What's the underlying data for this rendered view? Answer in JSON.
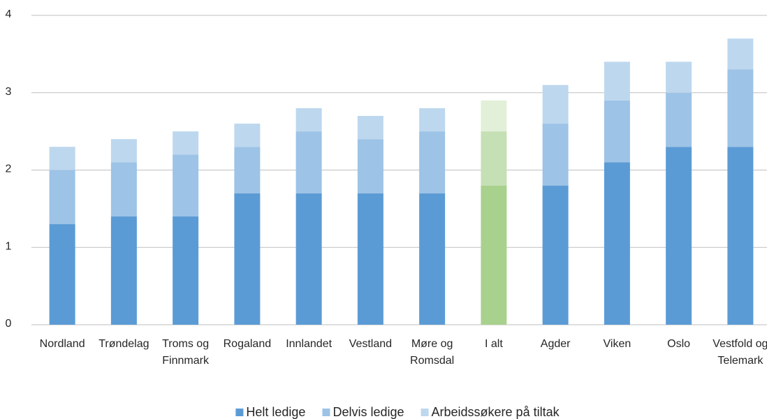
{
  "chart_data": {
    "type": "stacked_bar",
    "categories": [
      "Nordland",
      "Trøndelag",
      "Troms og Finnmark",
      "Rogaland",
      "Innlandet",
      "Vestland",
      "Møre og Romsdal",
      "I alt",
      "Agder",
      "Viken",
      "Oslo",
      "Vestfold og Telemark"
    ],
    "series": [
      {
        "name": "Helt ledige",
        "color": "#5b9bd5",
        "colors": [
          "#5b9bd5",
          "#5b9bd5",
          "#5b9bd5",
          "#5b9bd5",
          "#5b9bd5",
          "#5b9bd5",
          "#5b9bd5",
          "#a9d18e",
          "#5b9bd5",
          "#5b9bd5",
          "#5b9bd5",
          "#5b9bd5"
        ],
        "values": [
          1.3,
          1.4,
          1.4,
          1.7,
          1.7,
          1.7,
          1.7,
          1.8,
          1.8,
          2.1,
          2.3,
          2.3
        ]
      },
      {
        "name": "Delvis ledige",
        "color": "#9dc3e6",
        "colors": [
          "#9dc3e6",
          "#9dc3e6",
          "#9dc3e6",
          "#9dc3e6",
          "#9dc3e6",
          "#9dc3e6",
          "#9dc3e6",
          "#c5e0b4",
          "#9dc3e6",
          "#9dc3e6",
          "#9dc3e6",
          "#9dc3e6"
        ],
        "values": [
          0.7,
          0.7,
          0.8,
          0.6,
          0.8,
          0.7,
          0.8,
          0.7,
          0.8,
          0.8,
          0.7,
          1.0
        ]
      },
      {
        "name": "Arbeidssøkere på tiltak",
        "color": "#bdd7ee",
        "colors": [
          "#bdd7ee",
          "#bdd7ee",
          "#bdd7ee",
          "#bdd7ee",
          "#bdd7ee",
          "#bdd7ee",
          "#bdd7ee",
          "#e2f0d9",
          "#bdd7ee",
          "#bdd7ee",
          "#bdd7ee",
          "#bdd7ee"
        ],
        "values": [
          0.3,
          0.3,
          0.3,
          0.3,
          0.3,
          0.3,
          0.3,
          0.4,
          0.5,
          0.5,
          0.4,
          0.4
        ]
      }
    ],
    "ylim": [
      0,
      4
    ],
    "yticks": [
      0,
      1,
      2,
      3,
      4
    ],
    "grid": true,
    "legend": "bottom"
  }
}
